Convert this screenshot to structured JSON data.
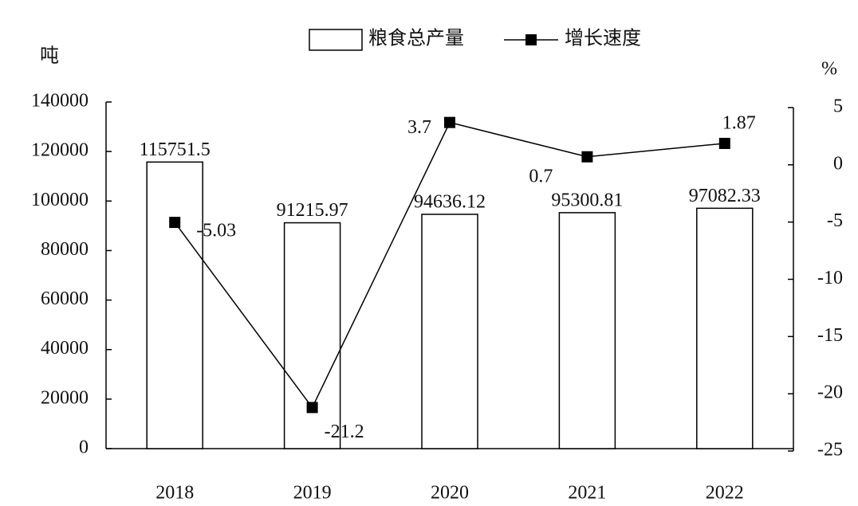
{
  "chart_data": {
    "type": "bar_line",
    "categories": [
      "2018",
      "2019",
      "2020",
      "2021",
      "2022"
    ],
    "y_label": "吨",
    "y2_label": "%",
    "series": [
      {
        "name": "粮食总产量",
        "type": "bar",
        "color": "#ffffff",
        "values": [
          115751.5,
          91215.97,
          94636.12,
          95300.81,
          97082.33
        ]
      },
      {
        "name": "增长速度",
        "type": "line",
        "axis": "y2",
        "color": "#000000",
        "values": [
          -5.03,
          -21.2,
          3.7,
          0.7,
          1.87
        ]
      }
    ],
    "ylim": [
      0,
      140000
    ],
    "yticks": [
      0,
      20000,
      40000,
      60000,
      80000,
      100000,
      120000,
      140000
    ],
    "y2lim": [
      -25,
      5
    ],
    "y2ticks": [
      -25,
      -20,
      -15,
      -10,
      -5,
      0,
      5
    ],
    "legend": "top"
  }
}
